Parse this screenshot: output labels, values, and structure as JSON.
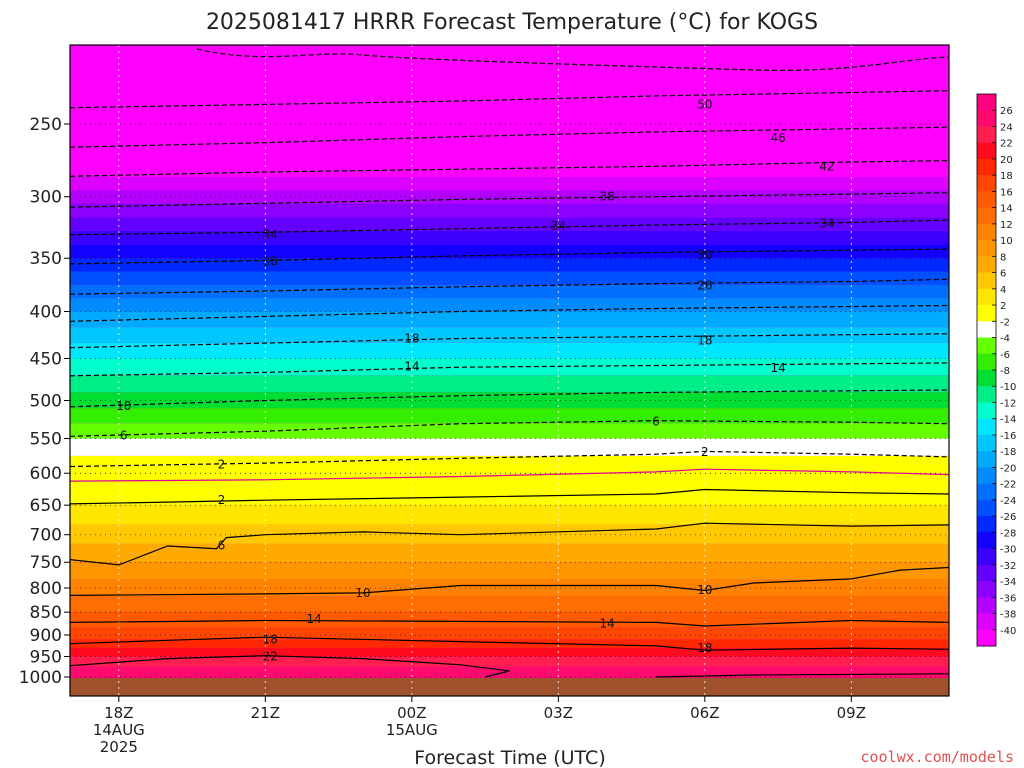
{
  "chart_data": {
    "type": "heatmap",
    "title": "2025081417 HRRR Forecast Temperature (°C) for KOGS",
    "xlabel": "Forecast Time (UTC)",
    "ylabel": "",
    "credit": "coolwx.com/models",
    "x_ticks": [
      {
        "hour": 1,
        "lines": [
          "18Z",
          "14AUG",
          "2025"
        ]
      },
      {
        "hour": 4,
        "lines": [
          "21Z"
        ]
      },
      {
        "hour": 7,
        "lines": [
          "00Z",
          "15AUG"
        ]
      },
      {
        "hour": 10,
        "lines": [
          "03Z"
        ]
      },
      {
        "hour": 13,
        "lines": [
          "06Z"
        ]
      },
      {
        "hour": 16,
        "lines": [
          "09Z"
        ]
      }
    ],
    "xlim_hours": [
      0,
      18
    ],
    "y_ticks": [
      250,
      300,
      350,
      400,
      450,
      500,
      550,
      600,
      650,
      700,
      750,
      800,
      850,
      900,
      950,
      1000
    ],
    "ylim_hPa": [
      1000,
      200
    ],
    "y_scale": "log-pressure",
    "colorbar": {
      "labels": [
        26,
        24,
        22,
        20,
        18,
        16,
        14,
        12,
        10,
        8,
        6,
        4,
        2,
        -2,
        -4,
        -6,
        -8,
        -10,
        -12,
        -14,
        -16,
        -18,
        -20,
        -22,
        -24,
        -26,
        -28,
        -30,
        -32,
        -34,
        -36,
        -38,
        -40
      ],
      "colors": [
        "#ff0080",
        "#ff0a6e",
        "#ff1e50",
        "#ff0a1e",
        "#ff2800",
        "#ff4600",
        "#ff5a00",
        "#ff6e00",
        "#ff8200",
        "#ff9600",
        "#ffaa00",
        "#ffc800",
        "#ffe600",
        "#ffff00",
        "#ffffff",
        "#66ff00",
        "#33ee00",
        "#00dd33",
        "#00ee88",
        "#00ffcc",
        "#00e6ff",
        "#00c8ff",
        "#00aaff",
        "#008cff",
        "#006eff",
        "#0050ff",
        "#0028ff",
        "#1400ff",
        "#3c00ff",
        "#6400ff",
        "#8c00ff",
        "#b400ff",
        "#dc00ff",
        "#ff00ff"
      ]
    },
    "temperature_profile_hPa_C": [
      {
        "p": 1000,
        "t": 26
      },
      {
        "p": 950,
        "t": 22
      },
      {
        "p": 900,
        "t": 17
      },
      {
        "p": 850,
        "t": 14
      },
      {
        "p": 800,
        "t": 11
      },
      {
        "p": 750,
        "t": 8
      },
      {
        "p": 700,
        "t": 5
      },
      {
        "p": 650,
        "t": 2
      },
      {
        "p": 600,
        "t": 0
      },
      {
        "p": 550,
        "t": -4
      },
      {
        "p": 500,
        "t": -9
      },
      {
        "p": 450,
        "t": -14
      },
      {
        "p": 400,
        "t": -20
      },
      {
        "p": 350,
        "t": -28
      },
      {
        "p": 300,
        "t": -37
      },
      {
        "p": 250,
        "t": -48
      },
      {
        "p": 200,
        "t": -55
      }
    ],
    "contours": [
      {
        "level": -50,
        "style": "dashed",
        "points": [
          [
            0,
            240
          ],
          [
            4,
            238
          ],
          [
            8,
            236
          ],
          [
            12,
            233
          ],
          [
            16,
            231
          ],
          [
            18,
            230
          ]
        ],
        "labels": [
          [
            13,
            238
          ]
        ]
      },
      {
        "level": -46,
        "style": "dashed",
        "points": [
          [
            0,
            265
          ],
          [
            4,
            262
          ],
          [
            8,
            258
          ],
          [
            12,
            255
          ],
          [
            16,
            253
          ],
          [
            18,
            252
          ]
        ],
        "labels": [
          [
            14.5,
            259
          ]
        ]
      },
      {
        "level": -42,
        "style": "dashed",
        "points": [
          [
            0,
            285
          ],
          [
            4,
            282
          ],
          [
            8,
            280
          ],
          [
            12,
            278
          ],
          [
            16,
            275
          ],
          [
            18,
            274
          ]
        ],
        "labels": [
          [
            15.5,
            278
          ]
        ]
      },
      {
        "level": -38,
        "style": "dashed",
        "points": [
          [
            0,
            308
          ],
          [
            4,
            305
          ],
          [
            8,
            302
          ],
          [
            12,
            300
          ],
          [
            16,
            298
          ],
          [
            18,
            297
          ]
        ],
        "labels": [
          [
            11,
            300
          ]
        ]
      },
      {
        "level": -34,
        "style": "dashed",
        "points": [
          [
            0,
            330
          ],
          [
            4,
            328
          ],
          [
            8,
            325
          ],
          [
            12,
            322
          ],
          [
            16,
            320
          ],
          [
            18,
            318
          ]
        ],
        "labels": [
          [
            4.1,
            330
          ],
          [
            10,
            323
          ],
          [
            15.5,
            321
          ]
        ]
      },
      {
        "level": -30,
        "style": "dashed",
        "points": [
          [
            0,
            355
          ],
          [
            4,
            352
          ],
          [
            8,
            348
          ],
          [
            12,
            345
          ],
          [
            16,
            343
          ],
          [
            18,
            342
          ]
        ],
        "labels": [
          [
            4.1,
            353
          ],
          [
            13,
            347
          ]
        ]
      },
      {
        "level": -26,
        "style": "dashed",
        "points": [
          [
            0,
            383
          ],
          [
            4,
            380
          ],
          [
            8,
            376
          ],
          [
            12,
            373
          ],
          [
            16,
            371
          ],
          [
            18,
            369
          ]
        ],
        "labels": [
          [
            13,
            375
          ]
        ]
      },
      {
        "level": -22,
        "style": "dashed",
        "points": [
          [
            0,
            410
          ],
          [
            4,
            405
          ],
          [
            8,
            400
          ],
          [
            12,
            397
          ],
          [
            16,
            395
          ],
          [
            18,
            394
          ]
        ],
        "labels": []
      },
      {
        "level": -18,
        "style": "dashed",
        "points": [
          [
            0,
            438
          ],
          [
            4,
            433
          ],
          [
            8,
            428
          ],
          [
            12,
            426
          ],
          [
            16,
            424
          ],
          [
            18,
            423
          ]
        ],
        "labels": [
          [
            7,
            428
          ],
          [
            13,
            430
          ]
        ]
      },
      {
        "level": -14,
        "style": "dashed",
        "points": [
          [
            0,
            470
          ],
          [
            4,
            466
          ],
          [
            8,
            460
          ],
          [
            12,
            458
          ],
          [
            16,
            456
          ],
          [
            18,
            455
          ]
        ],
        "labels": [
          [
            7,
            459
          ],
          [
            14.5,
            461
          ]
        ]
      },
      {
        "level": -10,
        "style": "dashed",
        "points": [
          [
            0,
            508
          ],
          [
            4,
            500
          ],
          [
            8,
            494
          ],
          [
            12,
            490
          ],
          [
            16,
            488
          ],
          [
            18,
            487
          ]
        ],
        "labels": [
          [
            1.1,
            507
          ]
        ]
      },
      {
        "level": -6,
        "style": "dashed",
        "points": [
          [
            0,
            547
          ],
          [
            4,
            540
          ],
          [
            8,
            530
          ],
          [
            12,
            526
          ],
          [
            16,
            528
          ],
          [
            18,
            530
          ]
        ],
        "labels": [
          [
            1.1,
            546
          ],
          [
            12,
            527
          ]
        ]
      },
      {
        "level": -2,
        "style": "dashed",
        "points": [
          [
            0,
            590
          ],
          [
            4,
            585
          ],
          [
            8,
            578
          ],
          [
            12,
            572
          ],
          [
            13,
            568
          ],
          [
            16,
            572
          ],
          [
            18,
            576
          ]
        ],
        "labels": [
          [
            3.1,
            587
          ],
          [
            13,
            569
          ]
        ]
      },
      {
        "level": 0,
        "style": "magenta",
        "points": [
          [
            0,
            612
          ],
          [
            4,
            610
          ],
          [
            8,
            605
          ],
          [
            12,
            598
          ],
          [
            13,
            594
          ],
          [
            16,
            598
          ],
          [
            18,
            602
          ]
        ],
        "labels": []
      },
      {
        "level": 2,
        "style": "solid",
        "points": [
          [
            0,
            648
          ],
          [
            2,
            645
          ],
          [
            4,
            642
          ],
          [
            8,
            637
          ],
          [
            12,
            632
          ],
          [
            13,
            625
          ],
          [
            16,
            630
          ],
          [
            18,
            632
          ]
        ],
        "labels": [
          [
            3.1,
            642
          ]
        ]
      },
      {
        "level": 6,
        "style": "solid",
        "points": [
          [
            0,
            745
          ],
          [
            1,
            755
          ],
          [
            2,
            720
          ],
          [
            3,
            725
          ],
          [
            3.2,
            705
          ],
          [
            4,
            700
          ],
          [
            6,
            695
          ],
          [
            8,
            700
          ],
          [
            12,
            690
          ],
          [
            13,
            680
          ],
          [
            16,
            685
          ],
          [
            18,
            683
          ]
        ],
        "labels": [
          [
            3.1,
            719
          ]
        ]
      },
      {
        "level": 10,
        "style": "solid",
        "points": [
          [
            0,
            815
          ],
          [
            4,
            812
          ],
          [
            6,
            810
          ],
          [
            8,
            795
          ],
          [
            12,
            795
          ],
          [
            13,
            805
          ],
          [
            14,
            790
          ],
          [
            16,
            782
          ],
          [
            17,
            765
          ],
          [
            18,
            760
          ]
        ],
        "labels": [
          [
            6,
            810
          ],
          [
            13,
            804
          ]
        ]
      },
      {
        "level": 14,
        "style": "solid",
        "points": [
          [
            0,
            872
          ],
          [
            4,
            868
          ],
          [
            8,
            870
          ],
          [
            12,
            872
          ],
          [
            13,
            880
          ],
          [
            16,
            868
          ],
          [
            18,
            872
          ]
        ],
        "labels": [
          [
            5,
            865
          ],
          [
            11,
            875
          ]
        ]
      },
      {
        "level": 18,
        "style": "solid",
        "points": [
          [
            0,
            920
          ],
          [
            2,
            912
          ],
          [
            4,
            905
          ],
          [
            8,
            915
          ],
          [
            12,
            925
          ],
          [
            13,
            935
          ],
          [
            16,
            930
          ],
          [
            18,
            933
          ]
        ],
        "labels": [
          [
            4.1,
            910
          ],
          [
            13,
            930
          ]
        ]
      },
      {
        "level": 22,
        "style": "solid",
        "points": [
          [
            0,
            972
          ],
          [
            2,
            955
          ],
          [
            4,
            948
          ],
          [
            6,
            955
          ],
          [
            8,
            970
          ],
          [
            9,
            985
          ],
          [
            8.5,
            1000
          ]
        ],
        "labels": [
          [
            4.1,
            950
          ]
        ]
      },
      {
        "level": 26,
        "style": "solid",
        "points": [
          [
            12,
            1000
          ],
          [
            14,
            995
          ],
          [
            18,
            992
          ]
        ],
        "labels": []
      }
    ]
  }
}
